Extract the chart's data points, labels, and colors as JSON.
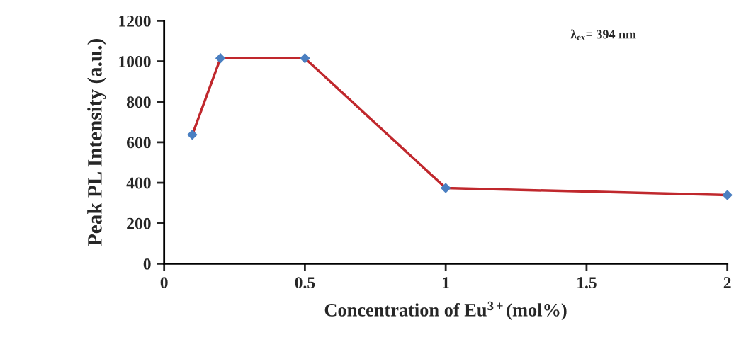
{
  "chart_data": {
    "type": "line",
    "xlabel": "Concentration of Eu$^{3+}$(mol%)",
    "ylabel": "Peak PL Intensity (a.u.)",
    "annotations": [
      "λ$_{ex}$= 394 nm"
    ],
    "x": [
      0.1,
      0.2,
      0.5,
      1,
      2
    ],
    "series": [
      {
        "color": "#c0282d",
        "colors": [
          "#4a7fc1",
          "#4a7fc1",
          "#4a7fc1",
          "#4a7fc1",
          "#4a7fc1"
        ],
        "values": [
          637,
          1015,
          1015,
          374,
          339
        ]
      }
    ],
    "marker": "diamond",
    "line_style": "solid",
    "grid": false,
    "legend": false,
    "xlim": [
      0,
      2
    ],
    "xticks": [
      0,
      0.5,
      1,
      1.5,
      2
    ],
    "ylim": [
      0,
      1200
    ],
    "yticks": [
      0,
      200,
      400,
      600,
      800,
      1000,
      1200
    ]
  }
}
